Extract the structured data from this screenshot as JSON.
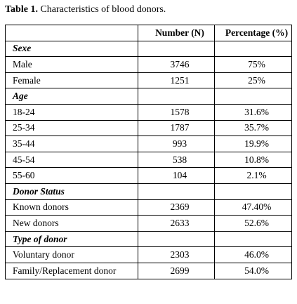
{
  "caption": {
    "label": "Table 1.",
    "text": " Characteristics of blood donors."
  },
  "table": {
    "headers": [
      "",
      "Number (N)",
      "Percentage (%)"
    ],
    "sections": [
      {
        "title": "Sexe",
        "rows": [
          {
            "label": "Male",
            "number": "3746",
            "percentage": "75%"
          },
          {
            "label": "Female",
            "number": "1251",
            "percentage": "25%"
          }
        ]
      },
      {
        "title": "Age",
        "rows": [
          {
            "label": "18-24",
            "number": "1578",
            "percentage": "31.6%"
          },
          {
            "label": "25-34",
            "number": "1787",
            "percentage": "35.7%"
          },
          {
            "label": "35-44",
            "number": "993",
            "percentage": "19.9%"
          },
          {
            "label": "45-54",
            "number": "538",
            "percentage": "10.8%"
          },
          {
            "label": "55-60",
            "number": "104",
            "percentage": "2.1%"
          }
        ]
      },
      {
        "title": "Donor Status",
        "rows": [
          {
            "label": "Known donors",
            "number": "2369",
            "percentage": "47.40%"
          },
          {
            "label": "New donors",
            "number": "2633",
            "percentage": "52.6%"
          }
        ]
      },
      {
        "title": "Type of donor",
        "rows": [
          {
            "label": "Voluntary donor",
            "number": "2303",
            "percentage": "46.0%"
          },
          {
            "label": "Family/Replacement donor",
            "number": "2699",
            "percentage": "54.0%"
          }
        ]
      }
    ]
  }
}
